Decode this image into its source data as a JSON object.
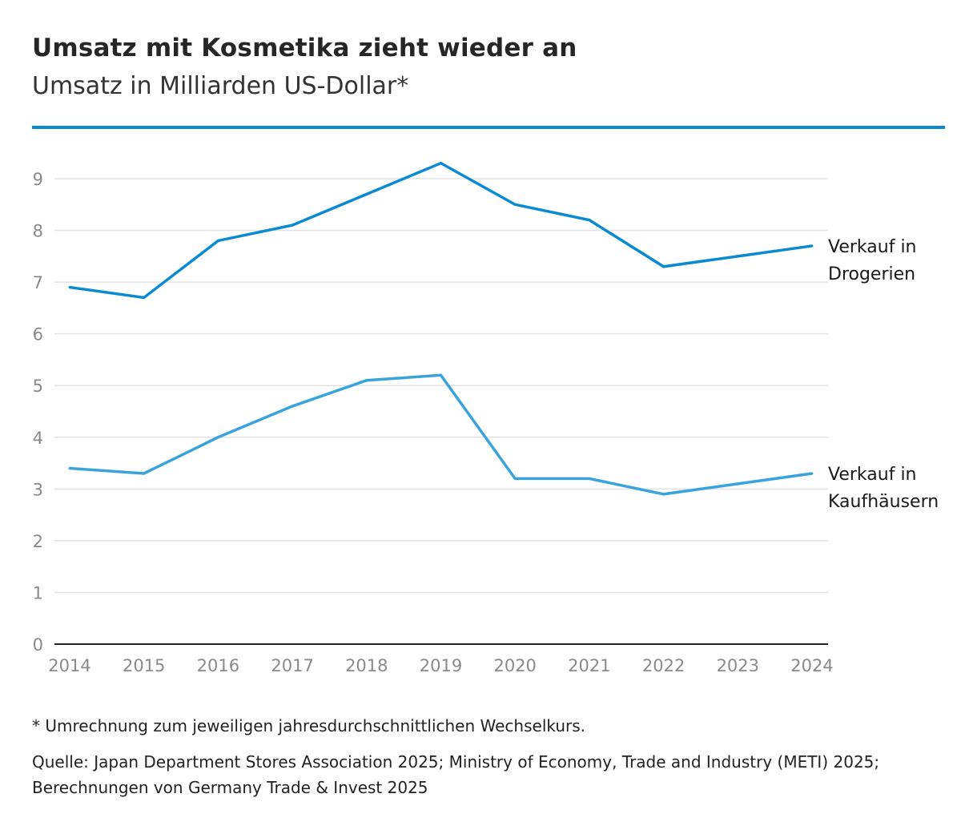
{
  "header": {
    "title": "Umsatz mit Kosmetika zieht wieder an",
    "subtitle": "Umsatz in Milliarden US-Dollar*"
  },
  "footer": {
    "footnote": "* Umrechnung zum jeweiligen jahresdurchschnittlichen Wechselkurs.",
    "source_line1": "Quelle: Japan Department Stores Association 2025; Ministry of Economy, Trade and Industry (METI) 2025;",
    "source_line2": "Berechnungen von Germany Trade & Invest 2025"
  },
  "colors": {
    "accent": "#0a8ad0",
    "series_drogerien": "#0a8ad0",
    "series_kaufhaeuser": "#3aa3dc",
    "grid": "#e3e3e3",
    "axis": "#222222"
  },
  "chart_data": {
    "type": "line",
    "title": "Umsatz mit Kosmetika zieht wieder an",
    "subtitle": "Umsatz in Milliarden US-Dollar*",
    "xlabel": "",
    "ylabel": "",
    "x": [
      "2014",
      "2015",
      "2016",
      "2017",
      "2018",
      "2019",
      "2020",
      "2021",
      "2022",
      "2023",
      "2024"
    ],
    "ylim": [
      0,
      9
    ],
    "yticks": [
      "0",
      "1",
      "2",
      "3",
      "4",
      "5",
      "6",
      "7",
      "8",
      "9"
    ],
    "grid": true,
    "legend": "direct labels at right end of lines",
    "series": [
      {
        "name": "Verkauf in Drogerien",
        "label_lines": [
          "Verkauf in",
          "Drogerien"
        ],
        "color": "#0a8ad0",
        "values": [
          6.9,
          6.7,
          7.8,
          8.1,
          8.7,
          9.3,
          8.5,
          8.2,
          7.3,
          7.5,
          7.7
        ]
      },
      {
        "name": "Verkauf in Kaufhäusern",
        "label_lines": [
          "Verkauf in",
          "Kaufhäusern"
        ],
        "color": "#3aa3dc",
        "values": [
          3.4,
          3.3,
          4.0,
          4.6,
          5.1,
          5.2,
          3.2,
          3.2,
          2.9,
          3.1,
          3.3
        ]
      }
    ]
  }
}
